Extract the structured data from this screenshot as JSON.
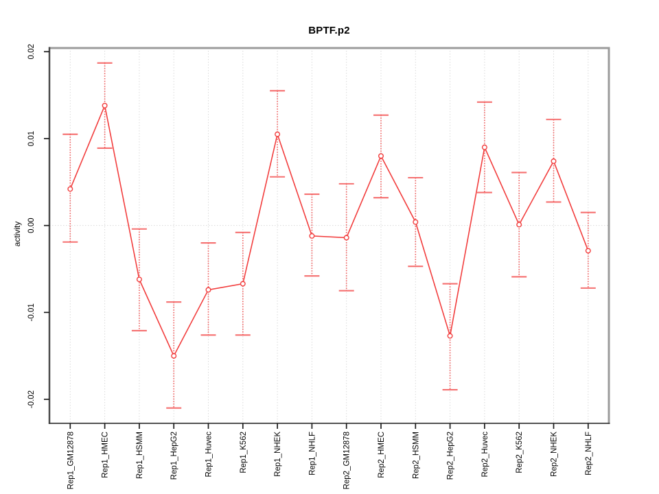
{
  "figure": {
    "background": "#ffffff"
  },
  "chart_data": {
    "type": "line",
    "title": "BPTF.p2",
    "xlabel": "",
    "ylabel": "activity",
    "categories": [
      "Rep1_GM12878",
      "Rep1_HMEC",
      "Rep1_HSMM",
      "Rep1_HepG2",
      "Rep1_Huvec",
      "Rep1_K562",
      "Rep1_NHEK",
      "Rep1_NHLF",
      "Rep2_GM12878",
      "Rep2_HMEC",
      "Rep2_HSMM",
      "Rep2_HepG2",
      "Rep2_Huvec",
      "Rep2_K562",
      "Rep2_NHEK",
      "Rep2_NHLF"
    ],
    "series": [
      {
        "name": "activity",
        "marker": "open-circle",
        "values": [
          0.0042,
          0.0138,
          -0.0062,
          -0.015,
          -0.0074,
          -0.0067,
          0.0105,
          -0.0012,
          -0.0014,
          0.008,
          0.0004,
          -0.0127,
          0.009,
          0.0001,
          0.0074,
          -0.0029
        ],
        "ci_low": [
          -0.0019,
          0.0089,
          -0.0121,
          -0.021,
          -0.0126,
          -0.0126,
          0.0056,
          -0.0058,
          -0.0075,
          0.0032,
          -0.0047,
          -0.0189,
          0.0038,
          -0.0059,
          0.0027,
          -0.0072
        ],
        "ci_high": [
          0.0105,
          0.0187,
          -0.0004,
          -0.0088,
          -0.002,
          -0.0008,
          0.0155,
          0.0036,
          0.0048,
          0.0127,
          0.0055,
          -0.0067,
          0.0142,
          0.0061,
          0.0122,
          0.0015
        ]
      }
    ],
    "ylim": [
      -0.02276,
      0.02042
    ],
    "yticks": [
      0.02,
      0.01,
      0,
      -0.01,
      -0.02
    ],
    "ytick_labels": [
      "0.02",
      "0.01",
      "0.00",
      "-0.01",
      "-0.02"
    ],
    "grid": {
      "vertical_per_category": true,
      "horizontal_at": [
        0
      ],
      "style": "dotted"
    },
    "legend_position": "none",
    "colors": {
      "series": "#f23d3d",
      "cap": "#f56060",
      "grid": "#d9d9d9",
      "frame_light": "#9b9b9b",
      "frame_dark": "#4a4a4a",
      "tick": "#1a1a1a",
      "text": "#000000"
    }
  }
}
